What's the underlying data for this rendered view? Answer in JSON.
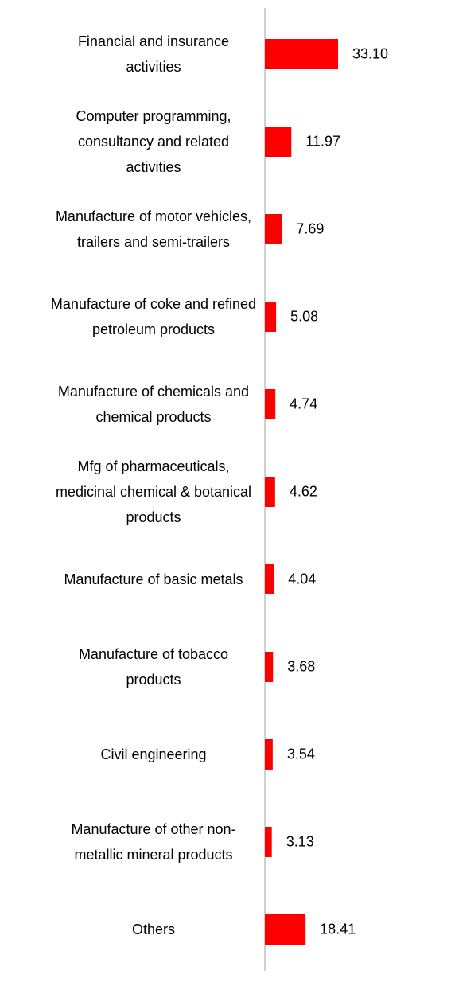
{
  "chart_data": {
    "type": "bar",
    "orientation": "horizontal",
    "categories": [
      "Financial and insurance activities",
      "Computer programming, consultancy and related activities",
      "Manufacture of motor vehicles, trailers and semi-trailers",
      "Manufacture of coke and refined petroleum products",
      "Manufacture of chemicals and chemical products",
      "Mfg of pharmaceuticals, medicinal chemical & botanical products",
      "Manufacture of basic metals",
      "Manufacture of tobacco products",
      "Civil engineering",
      "Manufacture of other non-metallic mineral products",
      "Others"
    ],
    "values": [
      33.1,
      11.97,
      7.69,
      5.08,
      4.74,
      4.62,
      4.04,
      3.68,
      3.54,
      3.13,
      18.41
    ],
    "value_labels": [
      "33.10",
      "11.97",
      "7.69",
      "5.08",
      "4.74",
      "4.62",
      "4.04",
      "3.68",
      "3.54",
      "3.13",
      "18.41"
    ],
    "color": "#ff0000"
  }
}
